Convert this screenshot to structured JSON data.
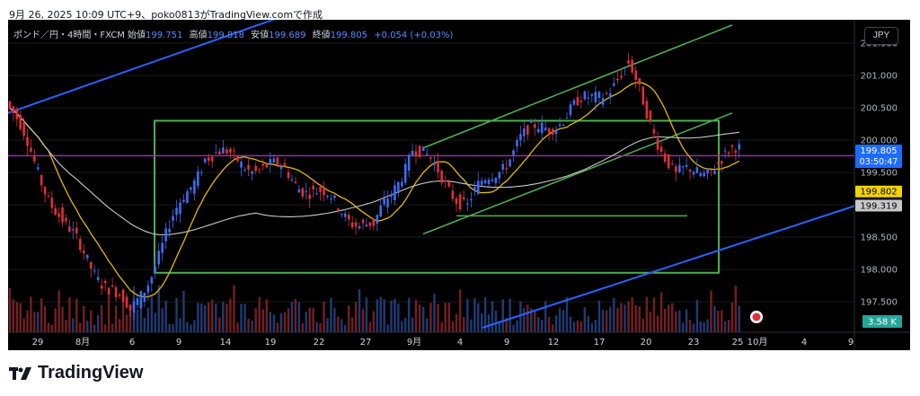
{
  "caption": "9月 26, 2025 10:09 UTC+9、poko0813がTradingView.comで作成",
  "legend": {
    "symbol": "ポンド／円・4時間・FXCM",
    "open_label": "始値",
    "open": "199.751",
    "high_label": "高値",
    "high": "199.818",
    "low_label": "安値",
    "low": "199.689",
    "close_label": "終値",
    "close": "199.805",
    "change": "+0.054 (+0.03%)"
  },
  "currency": "JPY",
  "brand": "TradingView",
  "colors": {
    "background": "#000000",
    "up": "#3d6cf0",
    "down": "#e0303a",
    "ma_short": "#e6b800",
    "ma_long": "#c8c8c8",
    "green_lines": "#4caf50",
    "blue_lines": "#2962ff",
    "horizontal": "#9c27b0"
  },
  "chart_data": {
    "type": "candlestick",
    "price_axis": {
      "ticks": [
        "201.500",
        "201.000",
        "200.500",
        "200.000",
        "199.500",
        "199.000",
        "198.500",
        "198.000",
        "197.500"
      ],
      "range": [
        197.1,
        201.75
      ]
    },
    "time_axis": {
      "ticks": [
        "29",
        "8月",
        "6",
        "9",
        "14",
        "19",
        "22",
        "27",
        "9月",
        "4",
        "9",
        "12",
        "17",
        "20",
        "23",
        "25",
        "10月",
        "4",
        "9"
      ]
    },
    "price_labels": [
      {
        "value": "199.805",
        "timer": "03:50:47",
        "color": "#1e6bff"
      },
      {
        "value": "199.802",
        "color": "#f5d200"
      },
      {
        "value": "199.319",
        "color": "#c8c8c8"
      }
    ],
    "volume_label": "3.58 K",
    "ranges": [
      {
        "from": "7/24",
        "to": "7/31",
        "start": 200.6,
        "end": 198.6
      },
      {
        "from": "7/31",
        "to": "8/6",
        "start": 198.6,
        "end": 197.3
      },
      {
        "from": "8/6",
        "to": "8/12",
        "start": 197.3,
        "end": 199.8
      },
      {
        "from": "8/12",
        "to": "8/20",
        "start": 199.8,
        "end": 199.5
      },
      {
        "from": "8/20",
        "to": "8/28",
        "start": 199.5,
        "end": 198.6
      },
      {
        "from": "8/28",
        "to": "9/1",
        "start": 198.6,
        "end": 199.9
      },
      {
        "from": "9/1",
        "to": "9/5",
        "start": 199.9,
        "end": 199.0
      },
      {
        "from": "9/5",
        "to": "9/10",
        "start": 199.0,
        "end": 200.0
      },
      {
        "from": "9/10",
        "to": "9/16",
        "start": 200.0,
        "end": 200.6
      },
      {
        "from": "9/16",
        "to": "9/19",
        "start": 200.6,
        "end": 201.1
      },
      {
        "from": "9/19",
        "to": "9/22",
        "start": 201.1,
        "end": 199.4
      },
      {
        "from": "9/22",
        "to": "9/26",
        "start": 199.4,
        "end": 199.8
      }
    ]
  }
}
